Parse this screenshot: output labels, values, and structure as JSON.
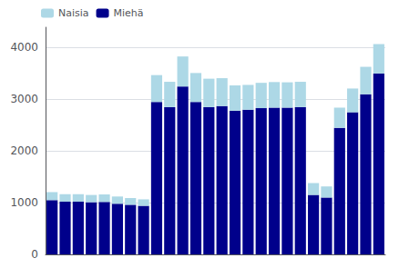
{
  "chart_data": {
    "type": "bar",
    "stacked": true,
    "categories": [
      null,
      null,
      null,
      null,
      null,
      null,
      null,
      null,
      null,
      null,
      null,
      null,
      null,
      null,
      null,
      null,
      null,
      null,
      null,
      null,
      null,
      null,
      null,
      null,
      null,
      null
    ],
    "series": [
      {
        "name": "Miehä",
        "color": "#00008b",
        "values": [
          1050,
          1020,
          1020,
          1010,
          1015,
          980,
          960,
          940,
          2950,
          2850,
          3250,
          2950,
          2850,
          2870,
          2780,
          2800,
          2830,
          2840,
          2840,
          2850,
          1150,
          1100,
          2450,
          2750,
          3100,
          3500
        ]
      },
      {
        "name": "Naisia",
        "color": "#add8e6",
        "values": [
          155,
          145,
          145,
          140,
          145,
          140,
          130,
          125,
          520,
          490,
          580,
          560,
          550,
          540,
          490,
          480,
          490,
          495,
          490,
          490,
          230,
          215,
          390,
          460,
          530,
          570
        ]
      }
    ],
    "ylim": [
      0,
      4395.6
    ],
    "yticks": [
      0,
      1000,
      2000,
      3000,
      4000
    ],
    "grid": true,
    "legend": "upper left",
    "tick_labels": "y"
  }
}
